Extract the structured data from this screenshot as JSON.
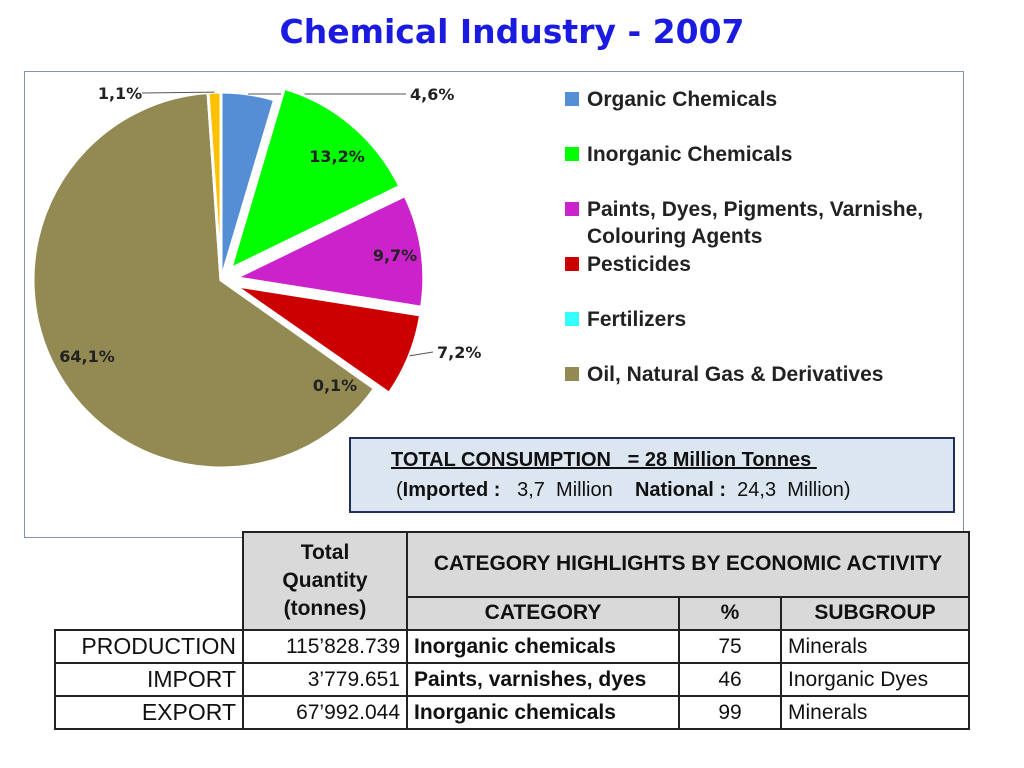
{
  "title": "Chemical Industry - 2007",
  "chart_data": {
    "type": "pie",
    "series": [
      {
        "label": "Organic Chemicals",
        "value": 4.6,
        "display": "4,6%",
        "color": "#558ed5"
      },
      {
        "label": "Inorganic Chemicals",
        "value": 13.2,
        "display": "13,2%",
        "color": "#00ff00"
      },
      {
        "label": "Paints, Dyes, Pigments, Varnishe, Colouring Agents",
        "value": 9.7,
        "display": "9,7%",
        "color": "#cc22cc"
      },
      {
        "label": "Pesticides",
        "value": 7.2,
        "display": "7,2%",
        "color": "#cc0000"
      },
      {
        "label": "Fertilizers",
        "value": 0.1,
        "display": "0,1%",
        "color": "#33ffff"
      },
      {
        "label": "Oil, Natural Gas & Derivatives",
        "value": 64.1,
        "display": "64,1%",
        "color": "#938953"
      },
      {
        "label": "",
        "value": 1.1,
        "display": "1,1%",
        "color": "#ffc000"
      }
    ],
    "legend": [
      {
        "text": "Organic Chemicals",
        "color": "#558ed5"
      },
      {
        "text": "Inorganic Chemicals",
        "color": "#00ff00"
      },
      {
        "text": "Paints, Dyes, Pigments, Varnishe,",
        "text2": "Colouring Agents",
        "color": "#cc22cc"
      },
      {
        "text": "Pesticides",
        "color": "#cc0000"
      },
      {
        "text": "Fertilizers",
        "color": "#33ffff"
      },
      {
        "text": "Oil, Natural Gas & Derivatives",
        "color": "#938953"
      }
    ],
    "legend_position": "right"
  },
  "summary": {
    "line1": "TOTAL CONSUMPTION   = 28 Million Tonnes ",
    "open_paren": "(",
    "imported_label": "Imported : ",
    "imported_value": "  3,7  Million    ",
    "national_label": "National : ",
    "national_value": " 24,3  Million)"
  },
  "table": {
    "header_quantity": [
      "Total",
      "Quantity",
      "(tonnes)"
    ],
    "header_highlights": "CATEGORY HIGHLIGHTS BY   ECONOMIC ACTIVITY",
    "header_category": "CATEGORY",
    "header_pct": "%",
    "header_subgroup": "SUBGROUP",
    "rows": [
      {
        "label": "PRODUCTION",
        "quantity": "115’828.739",
        "category": "Inorganic chemicals",
        "pct": "75",
        "subgroup": "Minerals"
      },
      {
        "label": "IMPORT",
        "quantity": "3’779.651",
        "category": "Paints, varnishes, dyes",
        "pct": "46",
        "subgroup": "Inorganic Dyes"
      },
      {
        "label": "EXPORT",
        "quantity": "67’992.044",
        "category": "Inorganic chemicals",
        "pct": "99",
        "subgroup": "Minerals"
      }
    ]
  }
}
